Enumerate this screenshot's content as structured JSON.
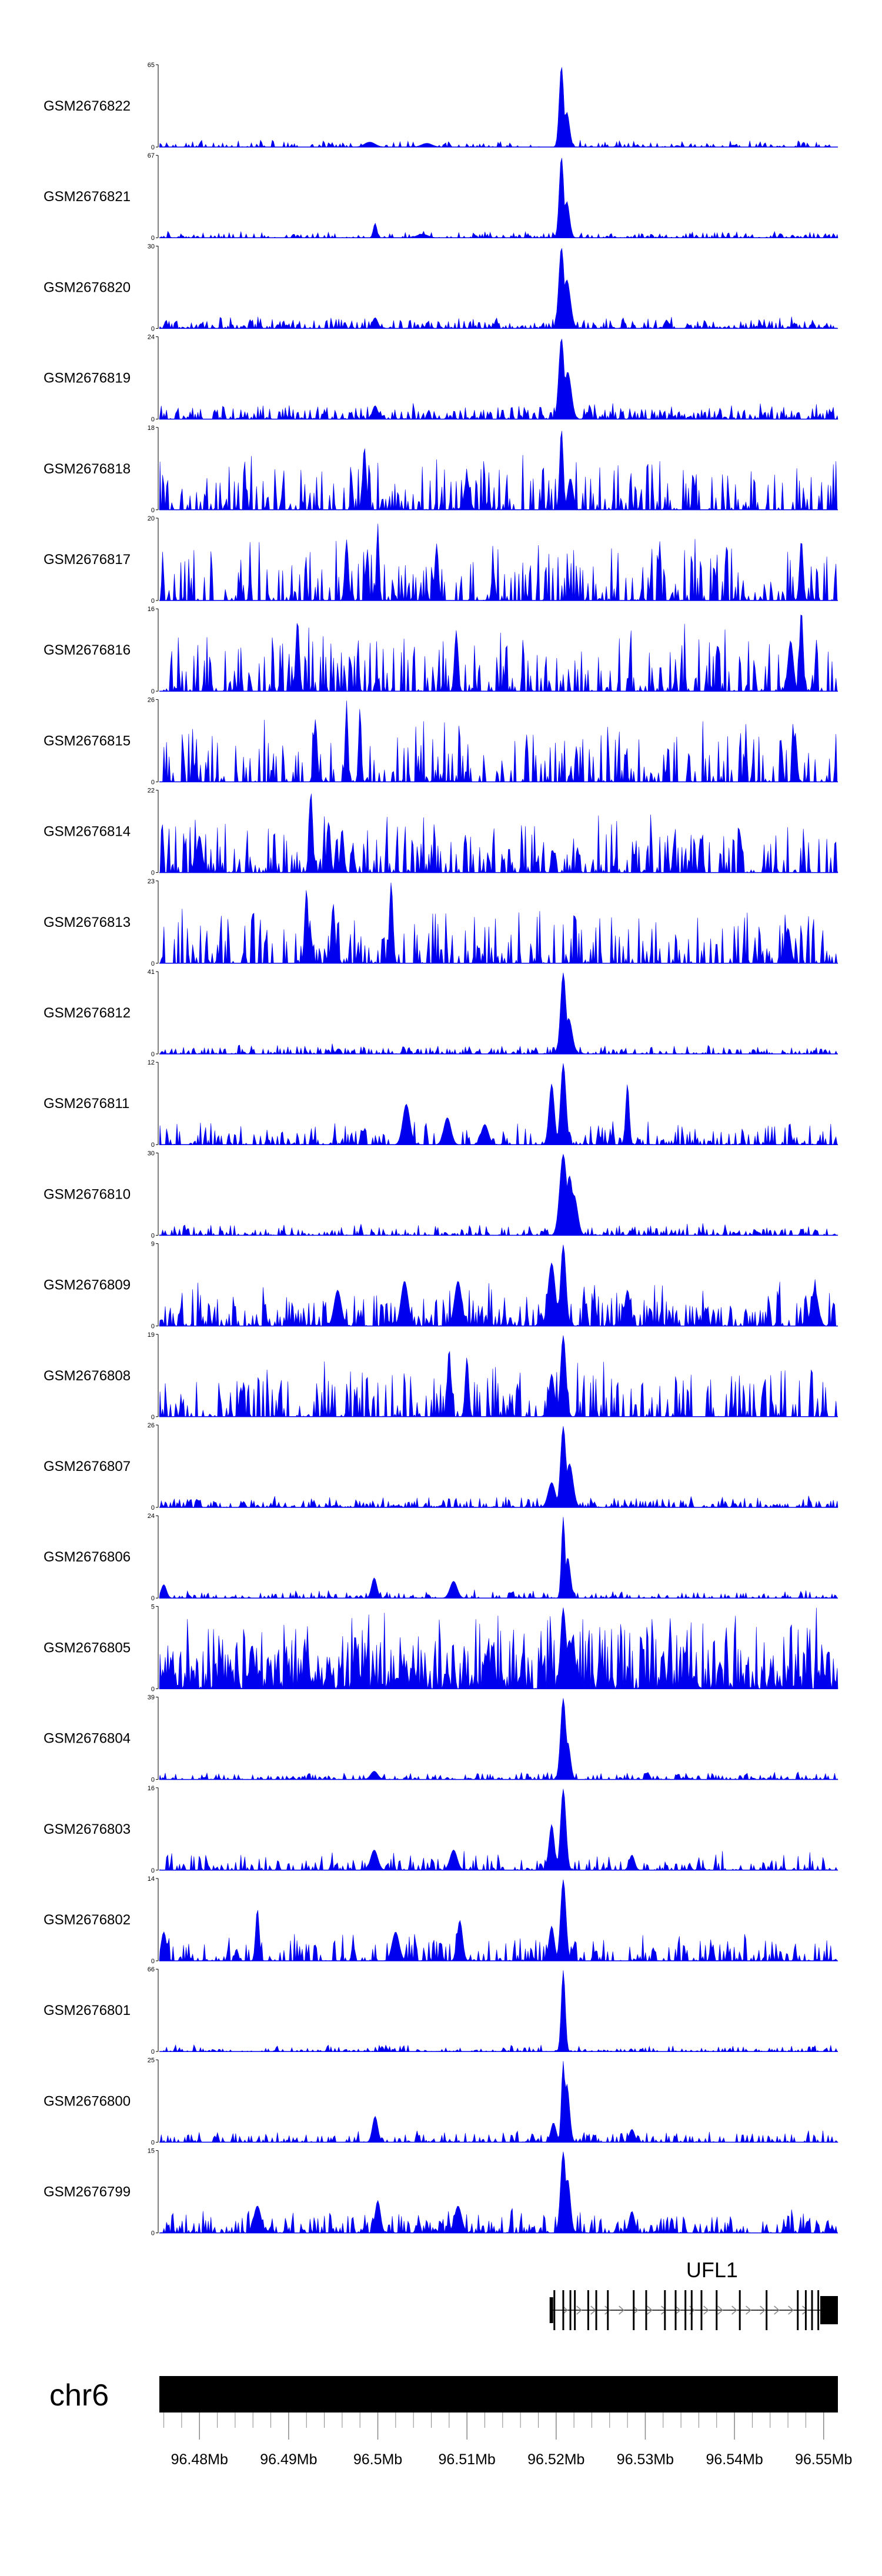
{
  "chart_data": {
    "type": "area",
    "chromosome": "chr6",
    "x_range_mb": [
      96.4755,
      96.5516
    ],
    "x_ticks": [
      {
        "value": 96.48,
        "label": "96.48Mb"
      },
      {
        "value": 96.49,
        "label": "96.49Mb"
      },
      {
        "value": 96.5,
        "label": "96.5Mb"
      },
      {
        "value": 96.51,
        "label": "96.51Mb"
      },
      {
        "value": 96.52,
        "label": "96.52Mb"
      },
      {
        "value": 96.53,
        "label": "96.53Mb"
      },
      {
        "value": 96.54,
        "label": "96.54Mb"
      },
      {
        "value": 96.55,
        "label": "96.55Mb"
      }
    ],
    "fill_color": "#0000ee",
    "gene": {
      "name": "UFL1",
      "start_mb": 96.5194,
      "end_mb": 96.5516,
      "exon_positions_mb": [
        96.5198,
        96.5208,
        96.5216,
        96.5221,
        96.5236,
        96.5245,
        96.5258,
        96.5287,
        96.5301,
        96.5322,
        96.5334,
        96.5345,
        96.5352,
        96.5363,
        96.538,
        96.5406,
        96.5436,
        96.5471,
        96.548,
        96.5487,
        96.5494
      ]
    },
    "series": [
      {
        "name": "GSM2676822",
        "ymax": 65,
        "peaks": [
          [
            96.5206,
            65,
            0.00025
          ],
          [
            96.5212,
            28,
            0.0003
          ],
          [
            96.4991,
            4,
            0.0006
          ],
          [
            96.5055,
            3,
            0.0006
          ]
        ],
        "noise": 0.035,
        "density": 0.55
      },
      {
        "name": "GSM2676821",
        "ymax": 67,
        "peaks": [
          [
            96.5206,
            67,
            0.00025
          ],
          [
            96.5212,
            30,
            0.0003
          ],
          [
            96.4997,
            12,
            0.0002
          ],
          [
            96.505,
            3,
            0.0006
          ]
        ],
        "noise": 0.035,
        "density": 0.55
      },
      {
        "name": "GSM2676820",
        "ymax": 30,
        "peaks": [
          [
            96.5206,
            30,
            0.0003
          ],
          [
            96.5212,
            18,
            0.0004
          ],
          [
            96.4997,
            4,
            0.0003
          ]
        ],
        "noise": 0.06,
        "density": 0.8
      },
      {
        "name": "GSM2676819",
        "ymax": 24,
        "peaks": [
          [
            96.5206,
            24,
            0.0003
          ],
          [
            96.5213,
            14,
            0.0004
          ],
          [
            96.4997,
            4,
            0.0003
          ]
        ],
        "noise": 0.08,
        "density": 0.85
      },
      {
        "name": "GSM2676818",
        "ymax": 18,
        "peaks": [
          [
            96.5206,
            18,
            0.0002
          ],
          [
            96.4985,
            14,
            0.0002
          ],
          [
            96.51,
            7,
            0.0003
          ],
          [
            96.5216,
            7,
            0.0003
          ]
        ],
        "noise": 0.28,
        "density": 0.45
      },
      {
        "name": "GSM2676817",
        "ymax": 20,
        "peaks": [
          [
            96.5,
            19,
            0.00015
          ],
          [
            96.4965,
            15,
            0.0002
          ],
          [
            96.5475,
            15,
            0.0002
          ],
          [
            96.5066,
            14,
            0.0002
          ]
        ],
        "noise": 0.32,
        "density": 0.5
      },
      {
        "name": "GSM2676816",
        "ymax": 16,
        "peaks": [
          [
            96.491,
            14,
            0.0002
          ],
          [
            96.5475,
            16,
            0.0002
          ],
          [
            96.5088,
            12,
            0.0002
          ],
          [
            96.5463,
            10,
            0.0003
          ]
        ],
        "noise": 0.32,
        "density": 0.5
      },
      {
        "name": "GSM2676815",
        "ymax": 26,
        "peaks": [
          [
            96.4965,
            26,
            0.00015
          ],
          [
            96.498,
            24,
            0.00015
          ],
          [
            96.493,
            20,
            0.0002
          ],
          [
            96.5468,
            16,
            0.0002
          ]
        ],
        "noise": 0.3,
        "density": 0.5
      },
      {
        "name": "GSM2676814",
        "ymax": 22,
        "peaks": [
          [
            96.4925,
            22,
            0.0002
          ],
          [
            96.4945,
            14,
            0.0002
          ],
          [
            96.496,
            12,
            0.0002
          ],
          [
            96.48,
            10,
            0.0003
          ]
        ],
        "noise": 0.3,
        "density": 0.55
      },
      {
        "name": "GSM2676813",
        "ymax": 23,
        "peaks": [
          [
            96.5015,
            23,
            0.0002
          ],
          [
            96.492,
            21,
            0.0002
          ],
          [
            96.495,
            17,
            0.0002
          ],
          [
            96.546,
            10,
            0.0003
          ]
        ],
        "noise": 0.28,
        "density": 0.5
      },
      {
        "name": "GSM2676812",
        "ymax": 41,
        "peaks": [
          [
            96.5208,
            41,
            0.0003
          ],
          [
            96.5214,
            18,
            0.0004
          ]
        ],
        "noise": 0.05,
        "density": 0.7
      },
      {
        "name": "GSM2676811",
        "ymax": 12,
        "peaks": [
          [
            96.5208,
            12,
            0.0003
          ],
          [
            96.5195,
            9,
            0.0003
          ],
          [
            96.528,
            9,
            0.0002
          ],
          [
            96.5032,
            6,
            0.0004
          ],
          [
            96.5078,
            4,
            0.0004
          ],
          [
            96.512,
            3,
            0.0004
          ]
        ],
        "noise": 0.12,
        "density": 0.65
      },
      {
        "name": "GSM2676810",
        "ymax": 30,
        "peaks": [
          [
            96.5208,
            30,
            0.0004
          ],
          [
            96.5215,
            22,
            0.0004
          ],
          [
            96.522,
            15,
            0.0004
          ]
        ],
        "noise": 0.06,
        "density": 0.7
      },
      {
        "name": "GSM2676809",
        "ymax": 9,
        "peaks": [
          [
            96.5208,
            9,
            0.0003
          ],
          [
            96.5195,
            7,
            0.0004
          ],
          [
            96.4955,
            4,
            0.0004
          ],
          [
            96.503,
            5,
            0.0004
          ],
          [
            96.509,
            5,
            0.0004
          ],
          [
            96.528,
            4,
            0.0003
          ],
          [
            96.549,
            4,
            0.0004
          ]
        ],
        "noise": 0.18,
        "density": 0.75
      },
      {
        "name": "GSM2676808",
        "ymax": 19,
        "peaks": [
          [
            96.5208,
            19,
            0.0003
          ],
          [
            96.508,
            16,
            0.0002
          ],
          [
            96.51,
            14,
            0.0002
          ],
          [
            96.5195,
            10,
            0.0003
          ]
        ],
        "noise": 0.28,
        "density": 0.5
      },
      {
        "name": "GSM2676807",
        "ymax": 26,
        "peaks": [
          [
            96.5208,
            26,
            0.0003
          ],
          [
            96.5215,
            14,
            0.0004
          ],
          [
            96.5195,
            8,
            0.0004
          ]
        ],
        "noise": 0.06,
        "density": 0.75
      },
      {
        "name": "GSM2676806",
        "ymax": 24,
        "peaks": [
          [
            96.5208,
            24,
            0.0002
          ],
          [
            96.5213,
            12,
            0.0003
          ],
          [
            96.4996,
            6,
            0.0003
          ],
          [
            96.5085,
            5,
            0.0004
          ],
          [
            96.476,
            4,
            0.0003
          ]
        ],
        "noise": 0.04,
        "density": 0.55
      },
      {
        "name": "GSM2676805",
        "ymax": 5,
        "peaks": [
          [
            96.5208,
            5,
            0.0003
          ],
          [
            96.5215,
            3,
            0.0004
          ]
        ],
        "noise": 0.42,
        "density": 0.95
      },
      {
        "name": "GSM2676804",
        "ymax": 39,
        "peaks": [
          [
            96.5208,
            39,
            0.0003
          ],
          [
            96.5213,
            18,
            0.0003
          ],
          [
            96.4996,
            4,
            0.0004
          ]
        ],
        "noise": 0.04,
        "density": 0.65
      },
      {
        "name": "GSM2676803",
        "ymax": 16,
        "peaks": [
          [
            96.5208,
            16,
            0.0003
          ],
          [
            96.5195,
            9,
            0.0003
          ],
          [
            96.4996,
            4,
            0.0004
          ],
          [
            96.5085,
            4,
            0.0004
          ],
          [
            96.5285,
            3,
            0.0003
          ]
        ],
        "noise": 0.1,
        "density": 0.65
      },
      {
        "name": "GSM2676802",
        "ymax": 14,
        "peaks": [
          [
            96.5208,
            14,
            0.0003
          ],
          [
            96.4865,
            9,
            0.0002
          ],
          [
            96.5092,
            7,
            0.0003
          ],
          [
            96.502,
            5,
            0.0004
          ],
          [
            96.5195,
            6,
            0.0003
          ],
          [
            96.476,
            5,
            0.0003
          ]
        ],
        "noise": 0.14,
        "density": 0.6
      },
      {
        "name": "GSM2676801",
        "ymax": 66,
        "peaks": [
          [
            96.5208,
            66,
            0.00022
          ]
        ],
        "noise": 0.035,
        "density": 0.55
      },
      {
        "name": "GSM2676800",
        "ymax": 25,
        "peaks": [
          [
            96.5208,
            25,
            0.0002
          ],
          [
            96.5212,
            18,
            0.0003
          ],
          [
            96.4997,
            8,
            0.0003
          ],
          [
            96.5197,
            6,
            0.0003
          ],
          [
            96.5285,
            4,
            0.0003
          ]
        ],
        "noise": 0.06,
        "density": 0.6
      },
      {
        "name": "GSM2676799",
        "ymax": 15,
        "peaks": [
          [
            96.5208,
            15,
            0.0003
          ],
          [
            96.5213,
            10,
            0.0003
          ],
          [
            96.4865,
            5,
            0.0004
          ],
          [
            96.5,
            6,
            0.0003
          ],
          [
            96.509,
            5,
            0.0004
          ],
          [
            96.5285,
            4,
            0.0003
          ]
        ],
        "noise": 0.12,
        "density": 0.7
      }
    ]
  }
}
